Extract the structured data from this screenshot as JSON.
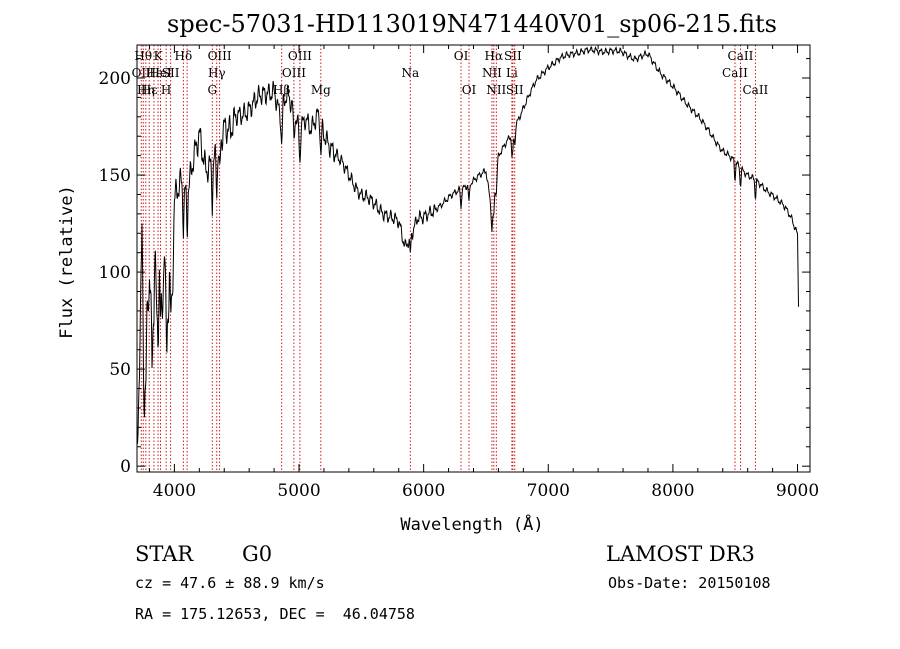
{
  "chart_data": {
    "type": "line",
    "title": "spec-57031-HD113019N471440V01_sp06-215.fits",
    "xlabel": "Wavelength (Å)",
    "ylabel": "Flux (relative)",
    "xlim": [
      3700,
      9100
    ],
    "ylim": [
      -3,
      217
    ],
    "x_ticks": [
      4000,
      5000,
      6000,
      7000,
      8000,
      9000
    ],
    "y_ticks": [
      0,
      50,
      100,
      150,
      200
    ],
    "line_color": "#000000",
    "marker_color": "#cc0000",
    "series": [
      {
        "x": [
          3700,
          3720,
          3740,
          3760,
          3780,
          3800,
          3820,
          3840,
          3860,
          3880,
          3900,
          3920,
          3940,
          3960,
          3980,
          4000,
          4050,
          4100,
          4150,
          4200,
          4250,
          4300,
          4350,
          4400,
          4450,
          4500,
          4600,
          4700,
          4800,
          4850,
          4900,
          4950,
          5000,
          5050,
          5100,
          5150,
          5200,
          5300,
          5400,
          5500,
          5600,
          5700,
          5800,
          5850,
          5900,
          5950,
          6000,
          6100,
          6200,
          6300,
          6400,
          6500,
          6550,
          6600,
          6700,
          6800,
          6900,
          7000,
          7100,
          7200,
          7300,
          7400,
          7500,
          7600,
          7700,
          7800,
          7900,
          8000,
          8100,
          8200,
          8300,
          8400,
          8500,
          8600,
          8700,
          8800,
          8900,
          8950,
          9000,
          9010
        ],
        "y": [
          5,
          60,
          130,
          30,
          70,
          110,
          45,
          115,
          75,
          105,
          80,
          120,
          70,
          100,
          80,
          135,
          145,
          140,
          160,
          170,
          150,
          155,
          165,
          175,
          170,
          180,
          185,
          190,
          195,
          180,
          190,
          185,
          175,
          180,
          172,
          180,
          172,
          160,
          150,
          140,
          135,
          130,
          125,
          113,
          120,
          128,
          127,
          133,
          138,
          143,
          147,
          152,
          130,
          160,
          170,
          185,
          198,
          206,
          210,
          213,
          214,
          214,
          214,
          213,
          210,
          212,
          203,
          195,
          188,
          180,
          172,
          162,
          157,
          150,
          145,
          140,
          133,
          128,
          120,
          75
        ]
      }
    ],
    "markers": [
      {
        "x": 3734,
        "label": "OII",
        "row": 2
      },
      {
        "x": 3750,
        "label": "Hθ",
        "row": 1
      },
      {
        "x": 3771,
        "label": "Hη",
        "row": 3
      },
      {
        "x": 3798,
        "label": "Hε",
        "row": 3
      },
      {
        "x": 3836,
        "label": "Hε",
        "row": 2
      },
      {
        "x": 3869,
        "label": "K",
        "row": 1
      },
      {
        "x": 3889,
        "label": "HeI",
        "row": 2
      },
      {
        "x": 3934,
        "label": "H",
        "row": 3
      },
      {
        "x": 3970,
        "label": "SII",
        "row": 2
      },
      {
        "x": 4072,
        "label": "Hδ",
        "row": 1
      },
      {
        "x": 4102,
        "label": "",
        "row": 0
      },
      {
        "x": 4304,
        "label": "G",
        "row": 3
      },
      {
        "x": 4340,
        "label": "Hγ",
        "row": 2
      },
      {
        "x": 4363,
        "label": "OIII",
        "row": 1
      },
      {
        "x": 4861,
        "label": "Hβ",
        "row": 3
      },
      {
        "x": 4959,
        "label": "OIII",
        "row": 2
      },
      {
        "x": 5007,
        "label": "OIII",
        "row": 1
      },
      {
        "x": 5175,
        "label": "Mg",
        "row": 3
      },
      {
        "x": 5893,
        "label": "Na",
        "row": 2
      },
      {
        "x": 6300,
        "label": "OI",
        "row": 1
      },
      {
        "x": 6364,
        "label": "OI",
        "row": 3
      },
      {
        "x": 6548,
        "label": "NII",
        "row": 2
      },
      {
        "x": 6563,
        "label": "Hα",
        "row": 1
      },
      {
        "x": 6583,
        "label": "NII",
        "row": 3
      },
      {
        "x": 6708,
        "label": "Li",
        "row": 2
      },
      {
        "x": 6716,
        "label": "SII",
        "row": 1
      },
      {
        "x": 6731,
        "label": "SII",
        "row": 3
      },
      {
        "x": 8498,
        "label": "CaII",
        "row": 2
      },
      {
        "x": 8542,
        "label": "CaII",
        "row": 1
      },
      {
        "x": 8662,
        "label": "CaII",
        "row": 3
      }
    ]
  },
  "info": {
    "object_class": "STAR",
    "subclass": "G0",
    "survey": "LAMOST DR3",
    "cz": "cz = 47.6 ± 88.9 km/s",
    "obs_date": "Obs-Date: 20150108",
    "coords": "RA = 175.12653, DEC =  46.04758"
  }
}
